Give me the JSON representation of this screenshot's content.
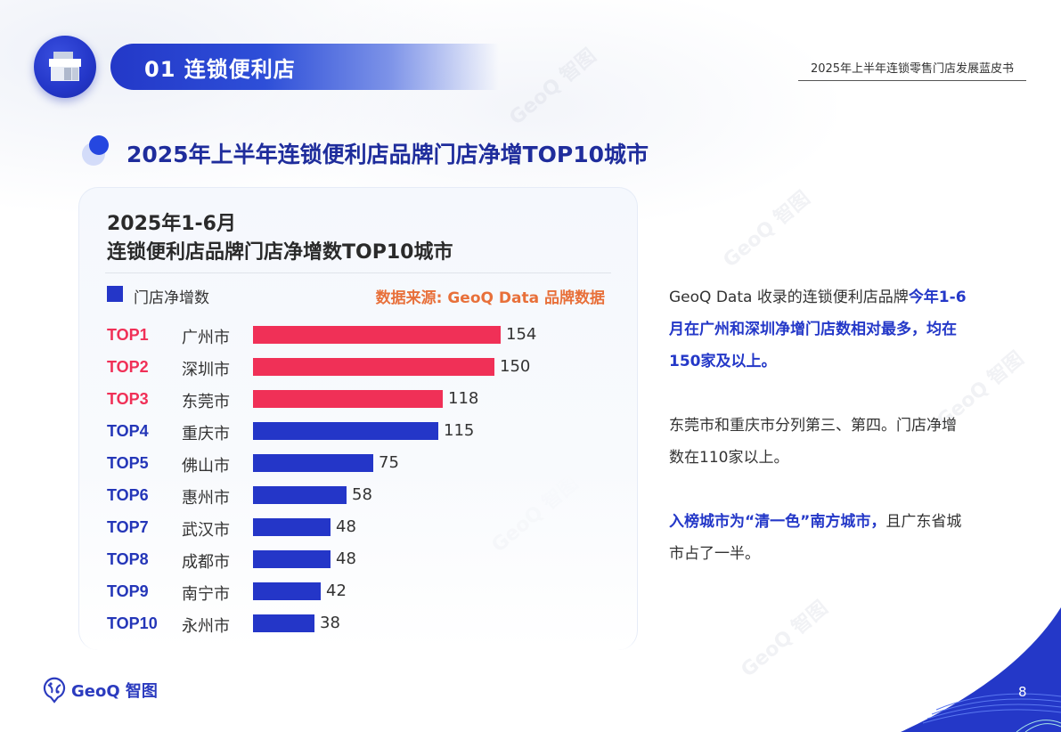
{
  "header": {
    "section_label": "01 连锁便利店",
    "section_icon": "store-icon",
    "report_title": "2025年上半年连锁零售门店发展蓝皮书"
  },
  "page_heading": "2025年上半年连锁便利店品牌门店净增TOP10城市",
  "card": {
    "title_line1": "2025年1-6月",
    "title_line2": "连锁便利店品牌门店净增数TOP10城市",
    "legend_label": "门店净增数",
    "source": "数据来源: GeoQ Data 品牌数据"
  },
  "colors": {
    "top_accent": "#f03057",
    "bar_blue": "#2436c8",
    "rank_blue": "#2436b8",
    "heading_blue": "#1f2d9c",
    "source_orange": "#e8703a"
  },
  "chart_data": {
    "type": "bar",
    "orientation": "horizontal",
    "title": "2025年1-6月 连锁便利店品牌门店净增数TOP10城市",
    "xlabel": "",
    "ylabel": "",
    "legend": [
      "门店净增数"
    ],
    "legend_position": "top-left",
    "grid": false,
    "xlim": [
      0,
      160
    ],
    "ranks": [
      "TOP1",
      "TOP2",
      "TOP3",
      "TOP4",
      "TOP5",
      "TOP6",
      "TOP7",
      "TOP8",
      "TOP9",
      "TOP10"
    ],
    "categories": [
      "广州市",
      "深圳市",
      "东莞市",
      "重庆市",
      "佛山市",
      "惠州市",
      "武汉市",
      "成都市",
      "南宁市",
      "永州市"
    ],
    "values": [
      154,
      150,
      118,
      115,
      75,
      58,
      48,
      48,
      42,
      38
    ],
    "highlight_top_n": 3,
    "source": "数据来源: GeoQ Data 品牌数据"
  },
  "notes": [
    {
      "segments": [
        {
          "text": "GeoQ Data 收录的连锁便利店品牌",
          "hl": false
        },
        {
          "text": "今年1-6月在广州和深圳净增门店数相对最多，均在150家及以上。",
          "hl": true
        }
      ]
    },
    {
      "segments": [
        {
          "text": "东莞市和重庆市分列第三、第四。门店净增数在110家以上。",
          "hl": false
        }
      ]
    },
    {
      "segments": [
        {
          "text": "入榜城市为“清一色”南方城市，",
          "hl": true
        },
        {
          "text": "且广东省城市占了一半。",
          "hl": false
        }
      ]
    }
  ],
  "footer": {
    "logo_text": "GeoQ 智图",
    "logo_icon": "geoq-pin-icon",
    "page_number": "8"
  }
}
